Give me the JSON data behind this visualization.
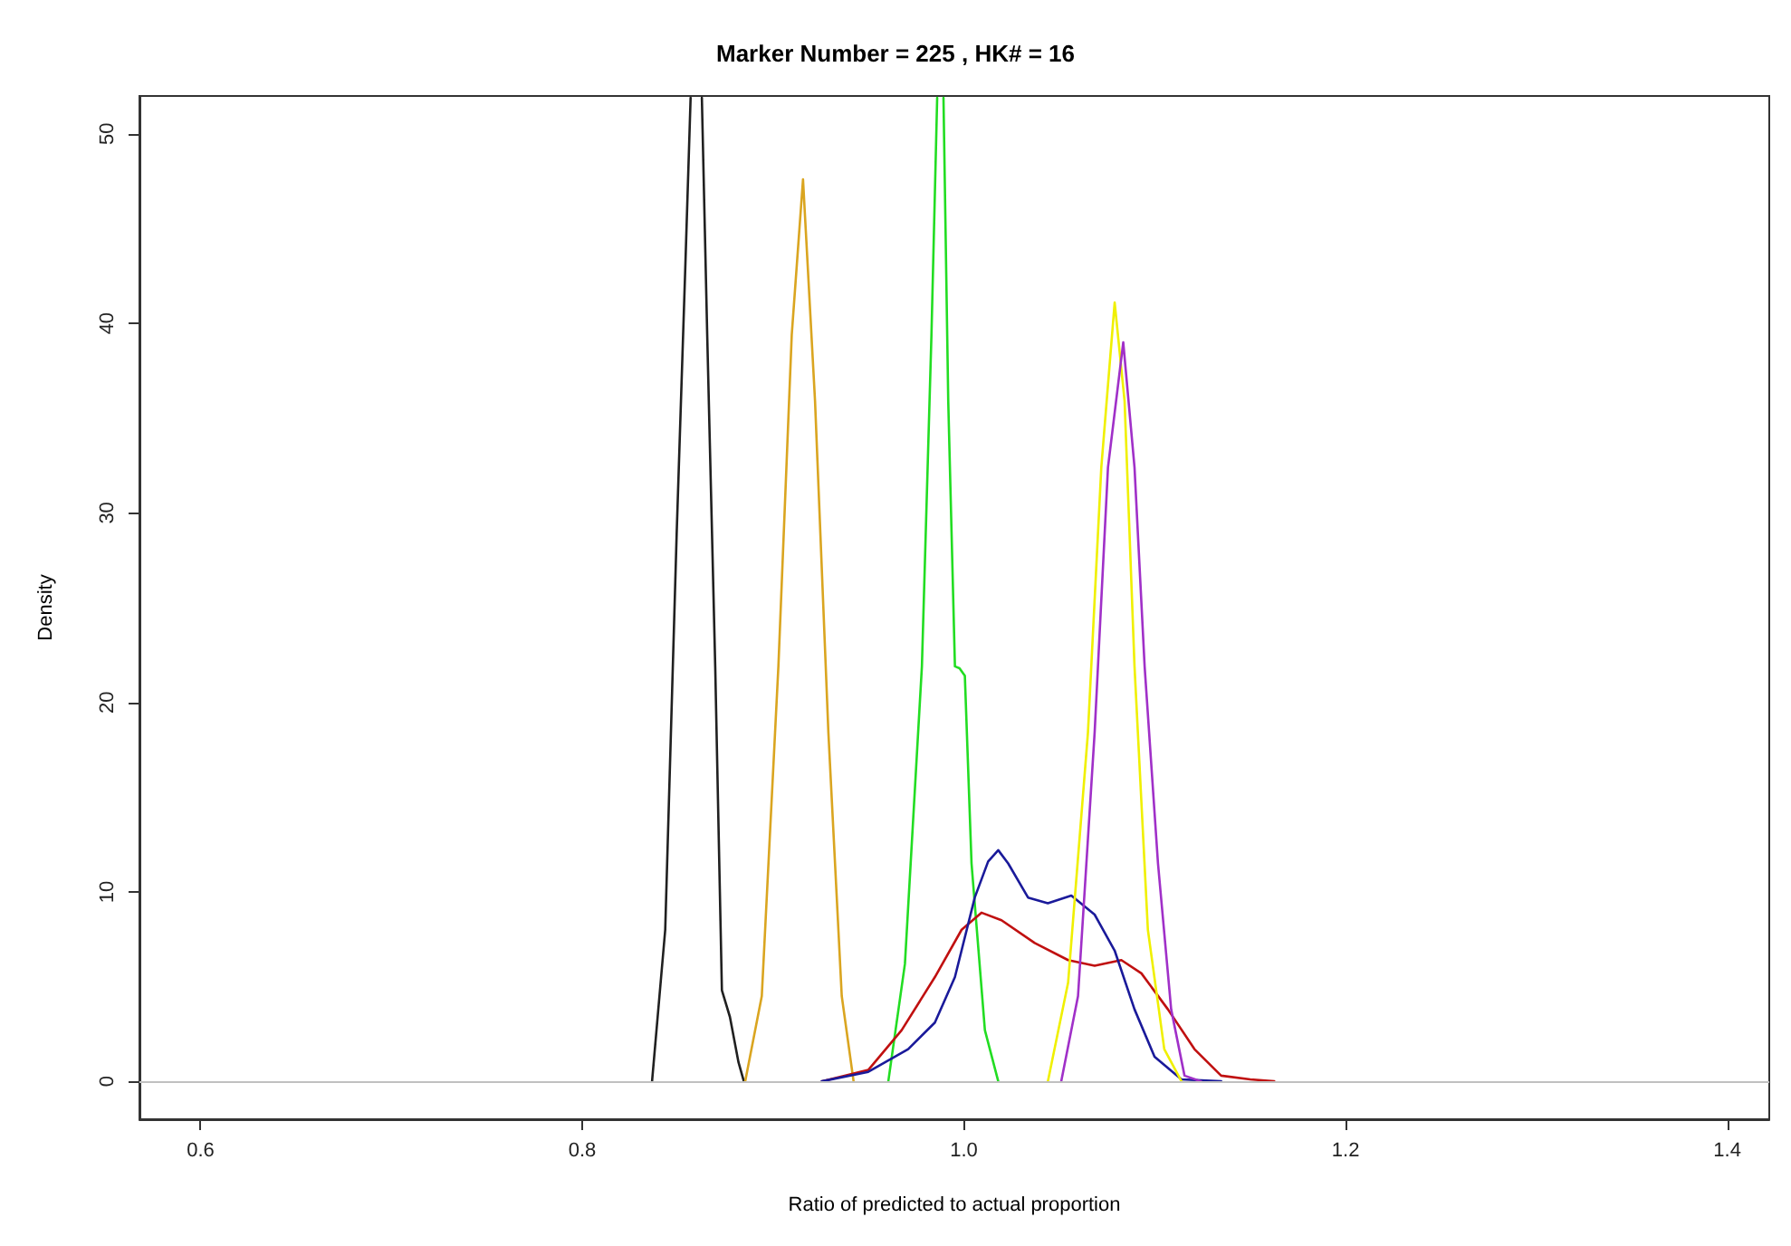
{
  "chart_data": {
    "type": "line",
    "title": "Marker Number = 225 , HK# = 16",
    "xlabel": "Ratio of predicted to actual proportion",
    "ylabel": "Density",
    "xlim": [
      0.568,
      1.422
    ],
    "xticks": [
      0.6,
      0.8,
      {
        "value": 1,
        "label": "1.0"
      },
      1.2,
      1.4
    ],
    "ylim": [
      -2,
      52
    ],
    "yticks": [
      0,
      10,
      20,
      30,
      40,
      50
    ],
    "grid": false,
    "marker": "none",
    "line_style": "solid",
    "ref_lines": [
      {
        "axis": "y",
        "value": 0,
        "color": "#c0c0c0"
      }
    ],
    "series": [
      {
        "color": "#202020",
        "x": [
          0.8366,
          0.8435,
          0.8495,
          0.854,
          0.8568,
          0.86,
          0.8627,
          0.8655,
          0.8697,
          0.8732,
          0.8774,
          0.8819,
          0.8847
        ],
        "values": [
          0,
          8.0,
          28.9,
          42.9,
          51.9,
          null,
          51.9,
          39.4,
          21.9,
          4.8,
          3.4,
          1.0,
          0
        ]
      },
      {
        "color": "#daa520",
        "x": [
          0.8854,
          0.8941,
          0.9028,
          0.9098,
          0.9157,
          0.922,
          0.929,
          0.936,
          0.9422
        ],
        "values": [
          0,
          4.5,
          21.9,
          39.4,
          47.6,
          35.9,
          18.4,
          4.5,
          0
        ]
      },
      {
        "color": "#22dd22",
        "x": [
          0.9604,
          0.9691,
          0.978,
          0.983,
          0.986,
          0.988,
          0.9893,
          0.9918,
          0.9953,
          0.9977,
          1.0005,
          1.004,
          1.011,
          1.018
        ],
        "values": [
          0,
          6.2,
          21.9,
          39.4,
          51.9,
          null,
          51.9,
          35.9,
          21.9,
          21.8,
          21.4,
          11.5,
          2.7,
          0
        ]
      },
      {
        "color": "#c01010",
        "x": [
          0.9255,
          0.9499,
          0.9674,
          0.9848,
          0.9988,
          1.0092,
          1.0197,
          1.0371,
          1.0546,
          1.0685,
          1.0825,
          1.093,
          1.1069,
          1.1208,
          1.1348,
          1.15,
          1.1626
        ],
        "values": [
          0,
          0.6,
          2.7,
          5.5,
          8.0,
          8.9,
          8.5,
          7.3,
          6.4,
          6.1,
          6.4,
          5.7,
          3.8,
          1.7,
          0.3,
          0.1,
          0
        ]
      },
      {
        "color": "#1a1a9a",
        "x": [
          0.9255,
          0.9499,
          0.9708,
          0.9848,
          0.9953,
          1.0057,
          1.0127,
          1.018,
          1.0232,
          1.0336,
          1.044,
          1.0563,
          1.0685,
          1.079,
          1.0894,
          1.0999,
          1.114,
          1.1348
        ],
        "values": [
          0,
          0.5,
          1.7,
          3.1,
          5.5,
          9.7,
          11.6,
          12.2,
          11.5,
          9.7,
          9.4,
          9.8,
          8.8,
          6.9,
          3.8,
          1.3,
          0.1,
          0
        ]
      },
      {
        "color": "#f0f000",
        "x": [
          1.044,
          1.0546,
          1.065,
          1.072,
          1.079,
          1.0842,
          1.0894,
          1.0964,
          1.105,
          1.114
        ],
        "values": [
          0,
          5.2,
          18.4,
          32.4,
          41.1,
          35.9,
          21.9,
          8.0,
          1.7,
          0
        ]
      },
      {
        "color": "#a030c8",
        "x": [
          1.051,
          1.0598,
          1.0685,
          1.0755,
          1.0835,
          1.0894,
          1.0947,
          1.1017,
          1.1086,
          1.1156,
          1.1243
        ],
        "values": [
          0,
          4.5,
          18.4,
          32.4,
          39.0,
          32.4,
          21.9,
          11.5,
          3.8,
          0.3,
          0
        ]
      }
    ]
  }
}
